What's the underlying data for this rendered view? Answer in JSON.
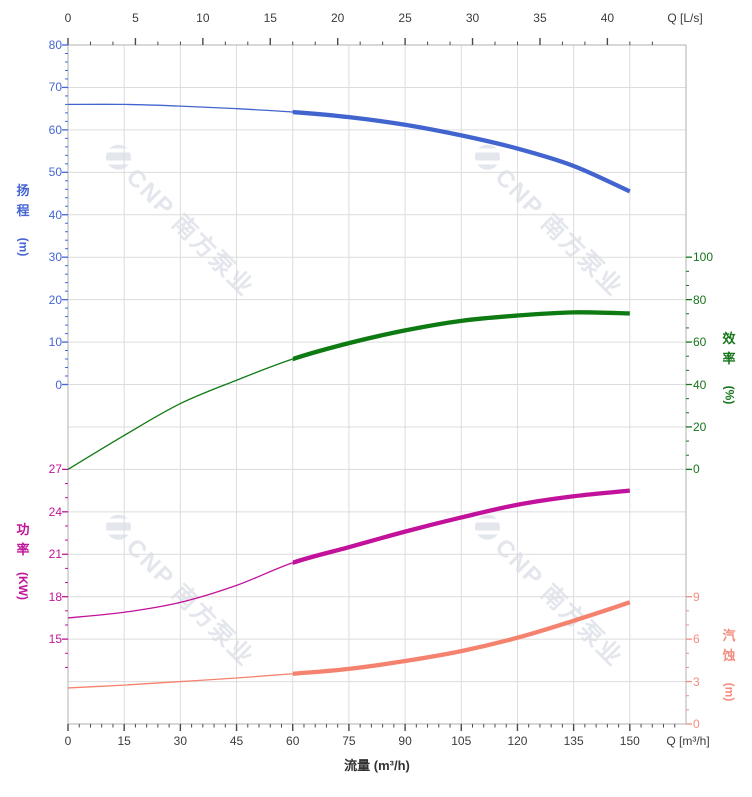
{
  "page": {
    "background": "#ffffff"
  },
  "watermark": {
    "text": "CNP 南方泵业",
    "color": "#e3e6ec"
  },
  "chart_data": {
    "type": "line",
    "title": "",
    "legend": "none",
    "grid_on": true,
    "grid": {
      "color": "#dcdcdc",
      "border_color": "#b2b2b2",
      "rows": 16,
      "cols": 11
    },
    "x_axis_bottom": {
      "title": "流量 (m³/h)",
      "end_label": "Q [m³/h]",
      "range": [
        0,
        165
      ],
      "major_ticks": [
        0,
        15,
        30,
        45,
        60,
        75,
        90,
        105,
        120,
        135,
        150
      ],
      "minor_step": 3,
      "minor_max": 162.1,
      "color": "#3c3c3c",
      "tick_color": "#4a4a4a"
    },
    "x_axis_top": {
      "end_label": "Q [L/s]",
      "range": [
        0,
        45.83
      ],
      "major_ticks": [
        0,
        5,
        10,
        15,
        20,
        25,
        30,
        35,
        40
      ],
      "minor_step": 1.66667,
      "minor_max": 43.4,
      "color": "#3c3c3c",
      "tick_color": "#4a4a4a"
    },
    "y_axes": [
      {
        "id": "head",
        "title": "扬程",
        "unit": "(m)",
        "side": "left",
        "color": "#4565d4",
        "range": [
          0,
          80
        ],
        "rows": [
          0,
          8
        ],
        "major_ticks": [
          80,
          70,
          60,
          50,
          40,
          30,
          20,
          10,
          0
        ],
        "minor_step": 2
      },
      {
        "id": "efficiency",
        "title": "效率",
        "unit": "(%)",
        "side": "right",
        "color": "#17751b",
        "range": [
          0,
          100
        ],
        "rows": [
          5,
          10
        ],
        "major_ticks": [
          100,
          80,
          60,
          40,
          20,
          0
        ],
        "minor_step": 6.66667
      },
      {
        "id": "power",
        "title": "功率",
        "unit": "(KW)",
        "side": "left",
        "color": "#c01598",
        "range": [
          15,
          27
        ],
        "rows": [
          10,
          14
        ],
        "major_ticks": [
          27,
          24,
          21,
          18,
          15
        ],
        "minor_step": 1,
        "minor_extend": 2
      },
      {
        "id": "npsh",
        "title": "汽蚀",
        "unit": "(m)",
        "side": "right",
        "color": "#f28d80",
        "range": [
          0,
          9
        ],
        "rows": [
          13,
          16
        ],
        "major_ticks": [
          9,
          6,
          3,
          0
        ],
        "minor_step": 1
      }
    ],
    "series": [
      {
        "name": "head-curve",
        "label": "扬程",
        "axis": "head",
        "color": "#4264cf",
        "bold_from": 60,
        "x": [
          0,
          15,
          30,
          45,
          60,
          75,
          90,
          105,
          120,
          135,
          150
        ],
        "values": [
          66,
          66,
          65.6,
          65,
          64.2,
          63,
          61.2,
          58.7,
          55.6,
          51.5,
          45.5
        ]
      },
      {
        "name": "efficiency-curve",
        "label": "效率",
        "axis": "efficiency",
        "color": "#0e7a12",
        "bold_from": 60,
        "x": [
          0,
          15,
          30,
          45,
          60,
          75,
          90,
          105,
          120,
          135,
          150
        ],
        "values": [
          0,
          16,
          31,
          42,
          52,
          59.5,
          65.5,
          70,
          72.5,
          74,
          73.5
        ]
      },
      {
        "name": "power-curve",
        "label": "功率",
        "axis": "power",
        "color": "#c2119b",
        "bold_from": 60,
        "x": [
          0,
          15,
          30,
          45,
          60,
          75,
          90,
          105,
          120,
          135,
          150
        ],
        "values": [
          16.5,
          16.9,
          17.6,
          18.8,
          20.4,
          21.5,
          22.6,
          23.6,
          24.5,
          25.1,
          25.5
        ]
      },
      {
        "name": "npsh-curve",
        "label": "汽蚀",
        "axis": "npsh",
        "color": "#f5826e",
        "bold_from": 60,
        "x": [
          0,
          15,
          30,
          45,
          60,
          75,
          90,
          105,
          120,
          135,
          150
        ],
        "values": [
          2.55,
          2.75,
          3.0,
          3.25,
          3.55,
          3.9,
          4.45,
          5.15,
          6.1,
          7.3,
          8.6
        ]
      }
    ]
  }
}
